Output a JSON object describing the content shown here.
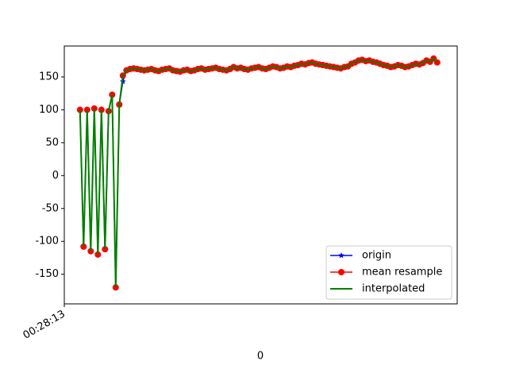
{
  "chart_data": {
    "type": "line",
    "xlabel": "0",
    "x": [
      0,
      1,
      2,
      3,
      4,
      5,
      6,
      7,
      8,
      9,
      10,
      11,
      12,
      13,
      14,
      15,
      16,
      17,
      18,
      19,
      20,
      21,
      22,
      23,
      24,
      25,
      26,
      27,
      28,
      29,
      30,
      31,
      32,
      33,
      34,
      35,
      36,
      37,
      38,
      39,
      40,
      41,
      42,
      43,
      44,
      45,
      46,
      47,
      48,
      49,
      50,
      51,
      52,
      53,
      54,
      55,
      56,
      57,
      58,
      59,
      60,
      61,
      62,
      63,
      64,
      65,
      66,
      67,
      68,
      69,
      70,
      71,
      72,
      73,
      74,
      75,
      76,
      77,
      78,
      79,
      80,
      81,
      82,
      83,
      84,
      85,
      86,
      87,
      88,
      89,
      90,
      91,
      92,
      93,
      94,
      95,
      96,
      97,
      98,
      99,
      100
    ],
    "series": [
      {
        "name": "origin",
        "color": "#0000ff",
        "marker": "star",
        "values": [
          100,
          -108,
          100,
          -115,
          102,
          -120,
          100,
          -112,
          98,
          123,
          -170,
          108,
          143,
          160,
          162,
          163,
          162,
          161,
          160,
          161,
          162,
          160,
          159,
          161,
          162,
          163,
          160,
          159,
          158,
          160,
          161,
          159,
          160,
          162,
          163,
          161,
          162,
          163,
          164,
          162,
          161,
          160,
          162,
          165,
          163,
          164,
          162,
          161,
          163,
          164,
          165,
          163,
          162,
          164,
          166,
          165,
          163,
          164,
          166,
          165,
          167,
          168,
          170,
          169,
          171,
          172,
          170,
          169,
          168,
          167,
          166,
          165,
          164,
          163,
          165,
          166,
          170,
          172,
          175,
          176,
          174,
          175,
          173,
          172,
          170,
          168,
          167,
          165,
          166,
          168,
          167,
          165,
          166,
          168,
          170,
          169,
          171,
          175,
          173,
          178,
          172
        ]
      },
      {
        "name": "mean resample",
        "color": "#ff0000",
        "marker": "circle",
        "values": [
          100,
          -108,
          100,
          -115,
          102,
          -120,
          100,
          -112,
          98,
          123,
          -170,
          108,
          152,
          160,
          162,
          163,
          162,
          161,
          160,
          161,
          162,
          160,
          159,
          161,
          162,
          163,
          160,
          159,
          158,
          160,
          161,
          159,
          160,
          162,
          163,
          161,
          162,
          163,
          164,
          162,
          161,
          160,
          162,
          165,
          163,
          164,
          162,
          161,
          163,
          164,
          165,
          163,
          162,
          164,
          166,
          165,
          163,
          164,
          166,
          165,
          167,
          168,
          170,
          169,
          171,
          172,
          170,
          169,
          168,
          167,
          166,
          165,
          164,
          163,
          165,
          166,
          170,
          172,
          175,
          176,
          174,
          175,
          173,
          172,
          170,
          168,
          167,
          165,
          166,
          168,
          167,
          165,
          166,
          168,
          170,
          169,
          171,
          175,
          173,
          178,
          172
        ]
      },
      {
        "name": "interpolated",
        "color": "#008000",
        "marker": "none",
        "values": [
          100,
          -108,
          100,
          -115,
          102,
          -120,
          100,
          -112,
          98,
          123,
          -170,
          108,
          152,
          160,
          162,
          163,
          162,
          161,
          160,
          161,
          162,
          160,
          159,
          161,
          162,
          163,
          160,
          159,
          158,
          160,
          161,
          159,
          160,
          162,
          163,
          161,
          162,
          163,
          164,
          162,
          161,
          160,
          162,
          165,
          163,
          164,
          162,
          161,
          163,
          164,
          165,
          163,
          162,
          164,
          166,
          165,
          163,
          164,
          166,
          165,
          167,
          168,
          170,
          169,
          171,
          172,
          170,
          169,
          168,
          167,
          166,
          165,
          164,
          163,
          165,
          166,
          170,
          172,
          175,
          176,
          174,
          175,
          173,
          172,
          170,
          168,
          167,
          165,
          166,
          168,
          167,
          165,
          166,
          168,
          170,
          169,
          171,
          175,
          173,
          178,
          172
        ]
      }
    ],
    "xlim": [
      -4.4,
      105.6
    ],
    "xticks": [
      {
        "value": -4.4,
        "label": "00:28:13"
      }
    ],
    "ylim": [
      -195,
      197
    ],
    "yticks": [
      -150,
      -100,
      -50,
      0,
      50,
      100,
      150
    ],
    "legend": "lower right"
  }
}
